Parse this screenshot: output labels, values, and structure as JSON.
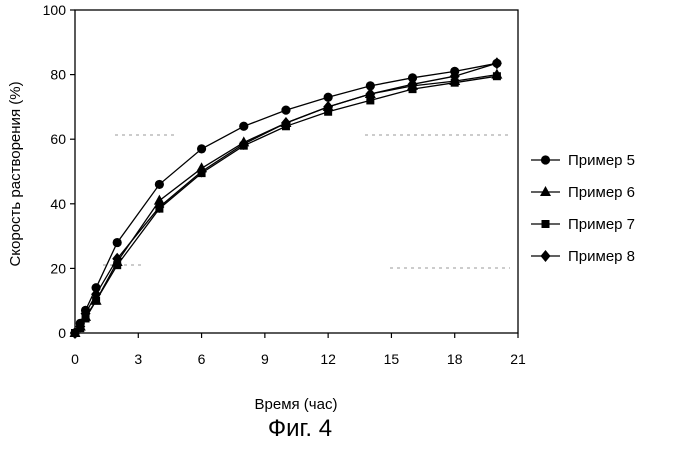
{
  "chart_data": {
    "type": "line",
    "xlabel": "Время (час)",
    "ylabel": "Скорость растворения (%)",
    "xlim": [
      0,
      21
    ],
    "ylim": [
      0,
      100
    ],
    "xticks": [
      "0",
      "3",
      "6",
      "9",
      "12",
      "15",
      "18",
      "21"
    ],
    "yticks": [
      "0",
      "20",
      "40",
      "60",
      "80",
      "100"
    ],
    "legend_position": "right",
    "grid": false,
    "series": [
      {
        "name": "Пример 5",
        "marker": "circle",
        "x": [
          0,
          0.25,
          0.5,
          1,
          2,
          4,
          6,
          8,
          10,
          12,
          14,
          16,
          18,
          20
        ],
        "y": [
          0,
          3,
          7,
          14,
          28,
          46,
          57,
          64,
          69,
          73,
          76.5,
          79,
          81,
          83.5
        ]
      },
      {
        "name": "Пример 6",
        "marker": "triangle",
        "x": [
          0,
          0.25,
          0.5,
          1,
          2,
          4,
          6,
          8,
          10,
          12,
          14,
          16,
          18,
          20
        ],
        "y": [
          0,
          2,
          5,
          10,
          22,
          41,
          51,
          59,
          65,
          70,
          74,
          76.5,
          78,
          80
        ]
      },
      {
        "name": "Пример 7",
        "marker": "square",
        "x": [
          0,
          0.25,
          0.5,
          1,
          2,
          4,
          6,
          8,
          10,
          12,
          14,
          16,
          18,
          20
        ],
        "y": [
          0,
          1.5,
          4.5,
          10,
          21,
          38.5,
          49.5,
          58,
          64,
          68.5,
          72,
          75.5,
          77.5,
          79.5
        ]
      },
      {
        "name": "Пример 8",
        "marker": "diamond",
        "x": [
          0,
          0.25,
          0.5,
          1,
          2,
          4,
          6,
          8,
          10,
          12,
          14,
          16,
          18,
          20
        ],
        "y": [
          0,
          2,
          6,
          12,
          23,
          39,
          50,
          58.5,
          65,
          70,
          74,
          77,
          79.5,
          83.5
        ]
      }
    ]
  },
  "figure_caption": "Фиг. 4"
}
